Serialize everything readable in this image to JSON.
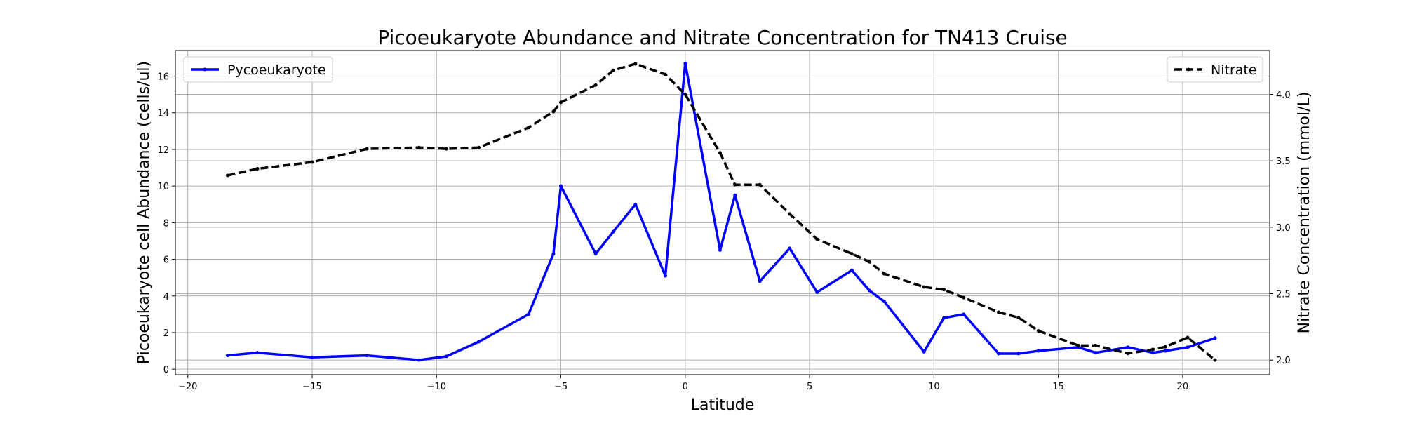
{
  "chart_data": {
    "type": "line",
    "title": "Picoeukaryote Abundance and Nitrate Concentration for TN413 Cruise",
    "xlabel": "Latitude",
    "ylabel_left": "Picoeukaryote cell Abundance (cells/ul)",
    "ylabel_right": "Nitrate Concentration (mmol/L)",
    "xlim": [
      -20.5,
      23.5
    ],
    "ylim_left": [
      -0.3,
      17.4
    ],
    "ylim_right": [
      1.89,
      4.33
    ],
    "x_ticks": [
      -20,
      -15,
      -10,
      -5,
      0,
      5,
      10,
      15,
      20
    ],
    "x_tick_labels": [
      "−20",
      "−15",
      "−10",
      "−5",
      "0",
      "5",
      "10",
      "15",
      "20"
    ],
    "y_left_ticks": [
      0,
      2,
      4,
      6,
      8,
      10,
      12,
      14,
      16
    ],
    "y_left_tick_labels": [
      "0",
      "2",
      "4",
      "6",
      "8",
      "10",
      "12",
      "14",
      "16"
    ],
    "y_right_ticks": [
      2.0,
      2.5,
      3.0,
      3.5,
      4.0
    ],
    "y_right_tick_labels": [
      "2.0",
      "2.5",
      "3.0",
      "3.5",
      "4.0"
    ],
    "grid": true,
    "series": [
      {
        "name": "Pycoeukaryote",
        "axis": "left",
        "color": "#0000ff",
        "style": "solid",
        "x": [
          -18.4,
          -17.2,
          -15.0,
          -12.8,
          -10.7,
          -9.6,
          -8.3,
          -6.3,
          -5.3,
          -5.0,
          -3.6,
          -2.9,
          -2.0,
          -0.8,
          0.0,
          1.4,
          2.0,
          3.0,
          4.2,
          5.3,
          6.7,
          7.4,
          8.0,
          9.6,
          10.4,
          11.2,
          12.6,
          13.4,
          14.2,
          15.8,
          16.5,
          17.8,
          18.8,
          19.3,
          20.2,
          21.3
        ],
        "y": [
          0.75,
          0.9,
          0.65,
          0.75,
          0.5,
          0.7,
          1.5,
          3.0,
          6.3,
          10.0,
          6.3,
          7.5,
          9.0,
          5.1,
          16.7,
          6.5,
          9.5,
          4.8,
          6.6,
          4.2,
          5.4,
          4.3,
          3.7,
          0.95,
          2.8,
          3.0,
          0.85,
          0.85,
          1.0,
          1.2,
          0.9,
          1.2,
          0.9,
          1.0,
          1.2,
          1.7
        ]
      },
      {
        "name": "Nitrate",
        "axis": "right",
        "color": "#000000",
        "style": "dashed",
        "x": [
          -18.4,
          -17.2,
          -15.0,
          -12.8,
          -10.7,
          -9.6,
          -8.3,
          -6.3,
          -5.3,
          -5.0,
          -3.6,
          -2.9,
          -2.0,
          -0.8,
          0.0,
          1.4,
          2.0,
          3.0,
          4.2,
          5.3,
          6.7,
          7.4,
          8.0,
          9.6,
          10.4,
          11.2,
          12.6,
          13.4,
          14.2,
          15.8,
          16.5,
          17.8,
          18.8,
          19.3,
          20.2,
          21.3
        ],
        "y": [
          3.39,
          3.44,
          3.49,
          3.59,
          3.6,
          3.59,
          3.6,
          3.75,
          3.87,
          3.94,
          4.07,
          4.18,
          4.23,
          4.15,
          4.0,
          3.56,
          3.32,
          3.32,
          3.1,
          2.91,
          2.8,
          2.74,
          2.65,
          2.55,
          2.53,
          2.47,
          2.36,
          2.32,
          2.22,
          2.11,
          2.11,
          2.05,
          2.08,
          2.1,
          2.17,
          2.0
        ]
      }
    ],
    "legend_left": {
      "label": "Pycoeukaryote",
      "position": "upper-left"
    },
    "legend_right": {
      "label": "Nitrate",
      "position": "upper-right"
    }
  }
}
